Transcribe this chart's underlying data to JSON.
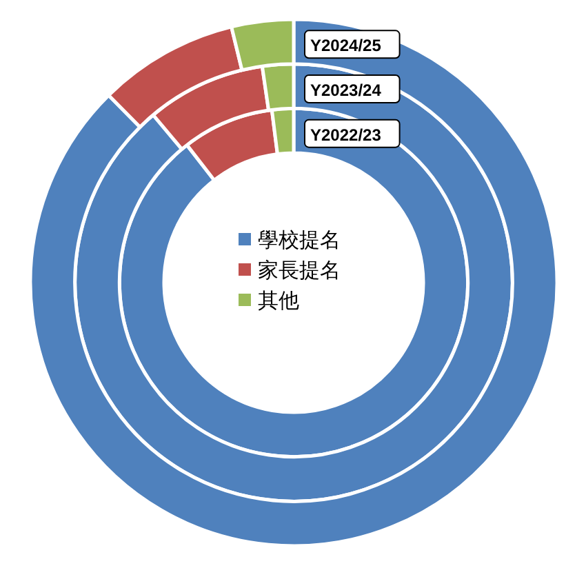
{
  "chart_data": {
    "type": "donut",
    "categories": [
      "學校提名",
      "家長提名",
      "其他"
    ],
    "colors": [
      "#4f81bd",
      "#c0504d",
      "#9bbb59"
    ],
    "legend": "center",
    "series": [
      {
        "name": "Y2022/23",
        "values": [
          89.5,
          8.5,
          2.0
        ]
      },
      {
        "name": "Y2023/24",
        "values": [
          88.9,
          8.8,
          2.3
        ]
      },
      {
        "name": "Y2024/25",
        "values": [
          87.6,
          8.6,
          3.8
        ]
      }
    ]
  }
}
